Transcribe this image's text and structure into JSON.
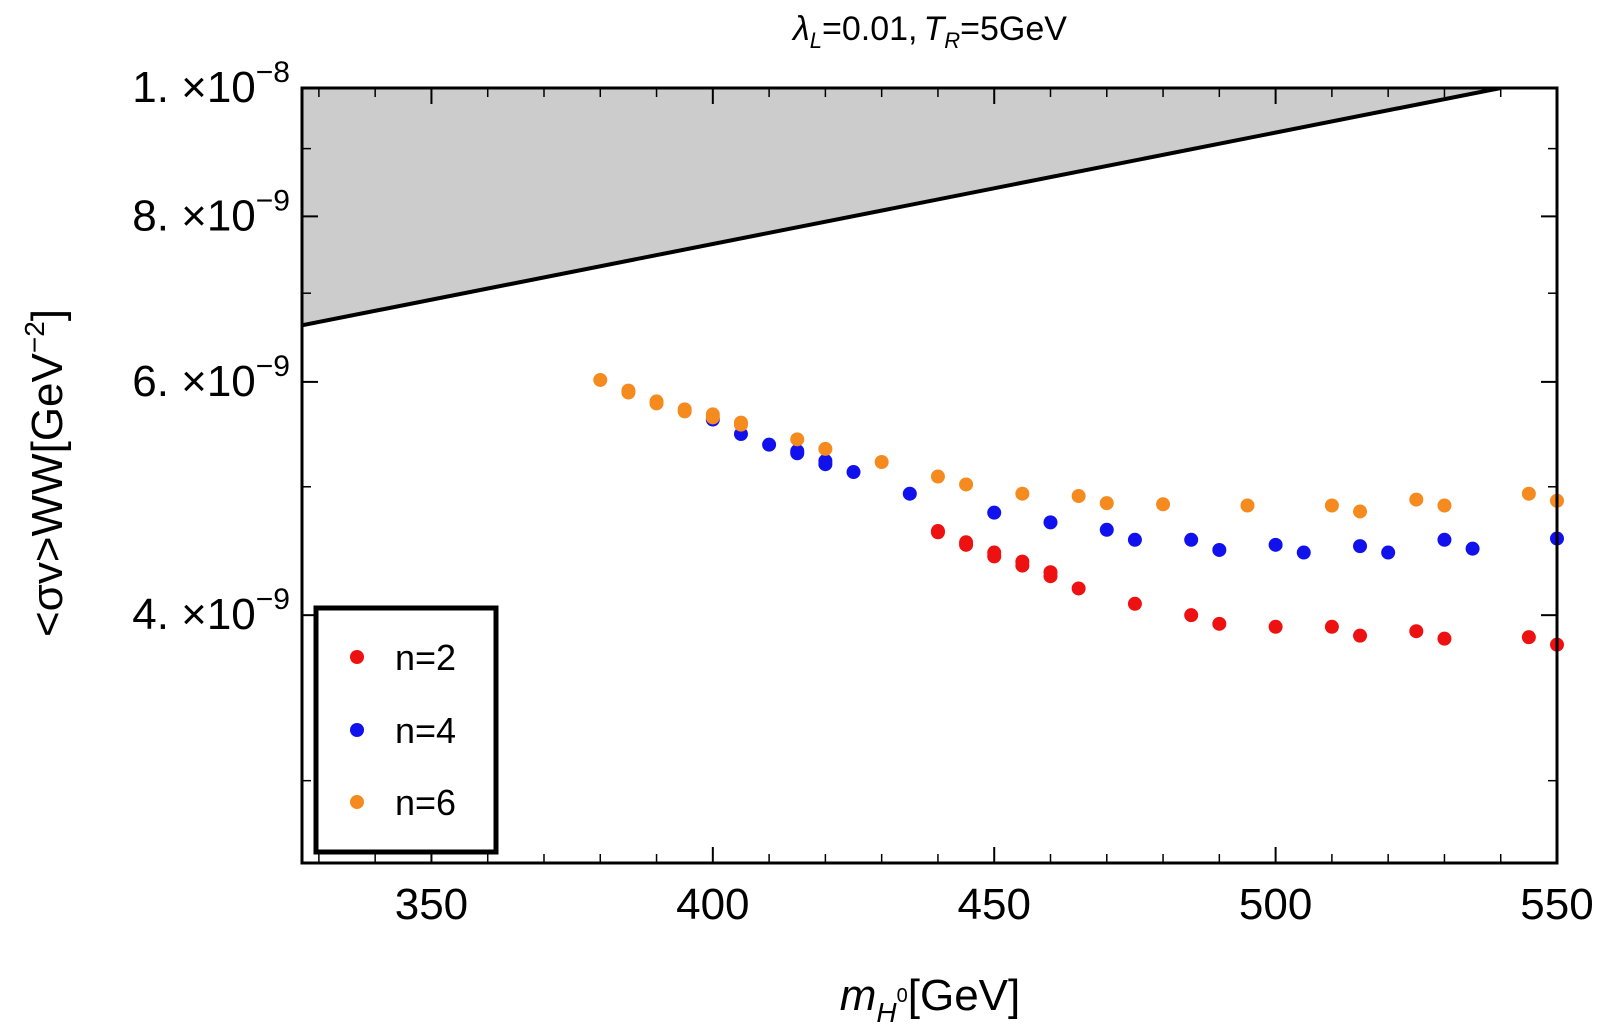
{
  "chart_data": {
    "type": "scatter",
    "title": {
      "lambda": "λ",
      "lambda_sub": "L",
      "lambda_val": "=0.01,",
      "t": "T",
      "t_sub": "R",
      "t_val": "=5GeV"
    },
    "xlabel": {
      "main": "m",
      "sub": "H",
      "sup": "0",
      "unit": "[GeV]"
    },
    "ylabel": {
      "text": "<σv>WW[GeV",
      "sup": "−2",
      "close": "]"
    },
    "xlim": [
      327,
      550
    ],
    "ylim": [
      2.6e-09,
      1e-08
    ],
    "yscale": "log",
    "x_ticks": [
      {
        "value": 350,
        "label": "350"
      },
      {
        "value": 400,
        "label": "400"
      },
      {
        "value": 450,
        "label": "450"
      },
      {
        "value": 500,
        "label": "500"
      },
      {
        "value": 550,
        "label": "550"
      }
    ],
    "y_ticks": [
      {
        "value": 4e-09,
        "mant": "4.",
        "exp": "−9"
      },
      {
        "value": 6e-09,
        "mant": "6.",
        "exp": "−9"
      },
      {
        "value": 8e-09,
        "mant": "8.",
        "exp": "−9"
      },
      {
        "value": 1e-08,
        "mant": "1.",
        "exp": "−8"
      }
    ],
    "y_minor_ticks": [
      3e-09,
      5e-09,
      7e-09,
      9e-09
    ],
    "tick_times": "×10",
    "x_minor_ticks": [
      330,
      340,
      360,
      370,
      380,
      390,
      410,
      420,
      430,
      440,
      460,
      470,
      480,
      490,
      510,
      520,
      530,
      540
    ],
    "exclusion_line": {
      "x": [
        327,
        540
      ],
      "y": [
        6.62e-09,
        1e-08
      ],
      "shaded": "above",
      "fill": "#cccccc",
      "color": "#000000"
    },
    "legend_position": "bottom-left",
    "series": [
      {
        "name": "n=2",
        "color": "#ee1111",
        "points": [
          [
            440,
            4.62e-09
          ],
          [
            440,
            4.63e-09
          ],
          [
            445,
            4.52e-09
          ],
          [
            445,
            4.54e-09
          ],
          [
            450,
            4.43e-09
          ],
          [
            450,
            4.46e-09
          ],
          [
            455,
            4.36e-09
          ],
          [
            455,
            4.39e-09
          ],
          [
            460,
            4.28e-09
          ],
          [
            460,
            4.31e-09
          ],
          [
            465,
            4.19e-09
          ],
          [
            475,
            4.08e-09
          ],
          [
            485,
            4e-09
          ],
          [
            490,
            3.94e-09
          ],
          [
            500,
            3.92e-09
          ],
          [
            510,
            3.92e-09
          ],
          [
            515,
            3.86e-09
          ],
          [
            525,
            3.89e-09
          ],
          [
            530,
            3.84e-09
          ],
          [
            545,
            3.85e-09
          ],
          [
            550,
            3.8e-09
          ]
        ]
      },
      {
        "name": "n=4",
        "color": "#1111ee",
        "points": [
          [
            400,
            5.62e-09
          ],
          [
            405,
            5.48e-09
          ],
          [
            410,
            5.38e-09
          ],
          [
            415,
            5.32e-09
          ],
          [
            415,
            5.3e-09
          ],
          [
            420,
            5.2e-09
          ],
          [
            420,
            5.23e-09
          ],
          [
            425,
            5.13e-09
          ],
          [
            435,
            4.94e-09
          ],
          [
            450,
            4.78e-09
          ],
          [
            460,
            4.7e-09
          ],
          [
            470,
            4.64e-09
          ],
          [
            475,
            4.56e-09
          ],
          [
            485,
            4.56e-09
          ],
          [
            490,
            4.48e-09
          ],
          [
            500,
            4.52e-09
          ],
          [
            505,
            4.46e-09
          ],
          [
            515,
            4.51e-09
          ],
          [
            520,
            4.46e-09
          ],
          [
            530,
            4.56e-09
          ],
          [
            535,
            4.49e-09
          ],
          [
            550,
            4.57e-09
          ]
        ]
      },
      {
        "name": "n=6",
        "color": "#f58a1f",
        "points": [
          [
            380,
            6.02e-09
          ],
          [
            385,
            5.89e-09
          ],
          [
            385,
            5.91e-09
          ],
          [
            390,
            5.78e-09
          ],
          [
            390,
            5.8e-09
          ],
          [
            395,
            5.7e-09
          ],
          [
            395,
            5.72e-09
          ],
          [
            400,
            5.64e-09
          ],
          [
            400,
            5.67e-09
          ],
          [
            405,
            5.57e-09
          ],
          [
            405,
            5.59e-09
          ],
          [
            415,
            5.43e-09
          ],
          [
            420,
            5.34e-09
          ],
          [
            430,
            5.22e-09
          ],
          [
            440,
            5.09e-09
          ],
          [
            445,
            5.02e-09
          ],
          [
            455,
            4.94e-09
          ],
          [
            465,
            4.92e-09
          ],
          [
            470,
            4.86e-09
          ],
          [
            480,
            4.85e-09
          ],
          [
            495,
            4.84e-09
          ],
          [
            510,
            4.84e-09
          ],
          [
            515,
            4.79e-09
          ],
          [
            525,
            4.89e-09
          ],
          [
            530,
            4.84e-09
          ],
          [
            545,
            4.94e-09
          ],
          [
            550,
            4.88e-09
          ]
        ]
      }
    ]
  }
}
